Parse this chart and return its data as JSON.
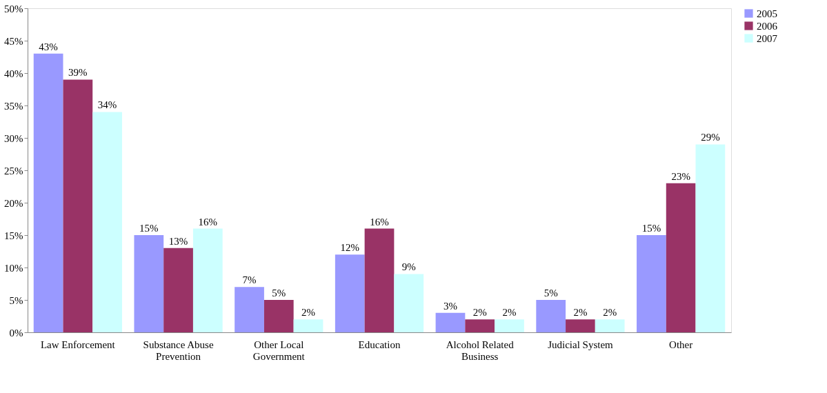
{
  "chart_data": {
    "type": "bar",
    "categories": [
      "Law Enforcement",
      "Substance Abuse Prevention",
      "Other Local Government",
      "Education",
      "Alcohol Related Business",
      "Judicial System",
      "Other"
    ],
    "series": [
      {
        "name": "2005",
        "color": "#9999ff",
        "values": [
          43,
          15,
          7,
          12,
          3,
          5,
          15
        ],
        "value_labels": [
          "43%",
          "15%",
          "7%",
          "12%",
          "3%",
          "5%",
          "15%"
        ]
      },
      {
        "name": "2006",
        "color": "#993366",
        "values": [
          39,
          13,
          5,
          16,
          2,
          2,
          23
        ],
        "value_labels": [
          "39%",
          "13%",
          "5%",
          "16%",
          "2%",
          "2%",
          "23%"
        ]
      },
      {
        "name": "2007",
        "color": "#ccffff",
        "values": [
          34,
          16,
          2,
          9,
          2,
          2,
          29
        ],
        "value_labels": [
          "34%",
          "16%",
          "2%",
          "9%",
          "2%",
          "2%",
          "29%"
        ]
      }
    ],
    "ylim": [
      0,
      50
    ],
    "yticks": [
      {
        "value": 0,
        "label": "0%"
      },
      {
        "value": 5,
        "label": "5%"
      },
      {
        "value": 10,
        "label": "10%"
      },
      {
        "value": 15,
        "label": "15%"
      },
      {
        "value": 20,
        "label": "20%"
      },
      {
        "value": 25,
        "label": "25%"
      },
      {
        "value": 30,
        "label": "30%"
      },
      {
        "value": 35,
        "label": "35%"
      },
      {
        "value": 40,
        "label": "40%"
      },
      {
        "value": 45,
        "label": "45%"
      },
      {
        "value": 50,
        "label": "50%"
      }
    ],
    "grid": false,
    "legend": "right"
  }
}
